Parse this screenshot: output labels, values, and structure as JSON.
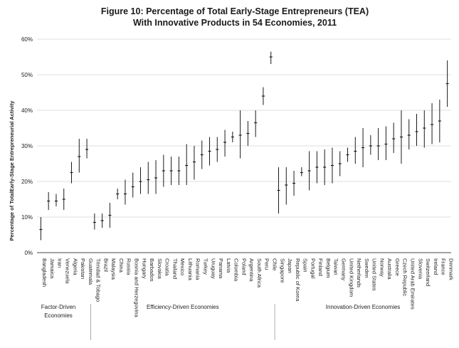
{
  "chart_data": {
    "type": "error-bar",
    "title_line1": "Figure 10: Percentage of Total Early-Stage Entrepreneurs (TEA)",
    "title_line2": "With Innovative Products in 54 Economies, 2011",
    "ylabel": "Percentage of TotalEarly-Stage  Entrepreneurial Activity",
    "ylim": [
      0,
      60
    ],
    "yticks": [
      "0%",
      "10%",
      "20%",
      "30%",
      "40%",
      "50%",
      "60%"
    ],
    "groups": [
      {
        "label_line1": "Factor-Driven",
        "label_line2": "Economies"
      },
      {
        "label_line1": "Efficiency-Driven Economies",
        "label_line2": ""
      },
      {
        "label_line1": "Innovation-Driven Economies",
        "label_line2": ""
      }
    ],
    "points": [
      {
        "name": "Bangladesh",
        "group": 0,
        "value": 6.5,
        "low": 3.5,
        "high": 10
      },
      {
        "name": "Jamaica",
        "group": 0,
        "value": 14.5,
        "low": 12,
        "high": 17
      },
      {
        "name": "Iran",
        "group": 0,
        "value": 14.5,
        "low": 13,
        "high": 16.5
      },
      {
        "name": "Venezuela",
        "group": 0,
        "value": 15,
        "low": 12,
        "high": 18
      },
      {
        "name": "Algeria",
        "group": 0,
        "value": 22.5,
        "low": 19.5,
        "high": 25.5
      },
      {
        "name": "Pakistan",
        "group": 0,
        "value": 27,
        "low": 22.5,
        "high": 32
      },
      {
        "name": "Guatemala",
        "group": 0,
        "value": 29,
        "low": 26.5,
        "high": 32
      },
      {
        "name": "Trinidad & Tobago",
        "group": 1,
        "value": 8.5,
        "low": 6.5,
        "high": 11
      },
      {
        "name": "Brazil",
        "group": 1,
        "value": 9,
        "low": 7,
        "high": 11
      },
      {
        "name": "Malaysia",
        "group": 1,
        "value": 10.5,
        "low": 7,
        "high": 14
      },
      {
        "name": "China",
        "group": 1,
        "value": 16.5,
        "low": 15,
        "high": 18
      },
      {
        "name": "Russia",
        "group": 1,
        "value": 16.5,
        "low": 13.5,
        "high": 20.5
      },
      {
        "name": "Bosnia and Herzegovina",
        "group": 1,
        "value": 18.5,
        "low": 15.5,
        "high": 22.5
      },
      {
        "name": "Hungary",
        "group": 1,
        "value": 20,
        "low": 16.5,
        "high": 24
      },
      {
        "name": "Barbados",
        "group": 1,
        "value": 20.5,
        "low": 16.5,
        "high": 25.5
      },
      {
        "name": "Slovakia",
        "group": 1,
        "value": 21,
        "low": 16.5,
        "high": 26
      },
      {
        "name": "Croatia",
        "group": 1,
        "value": 23,
        "low": 18.5,
        "high": 27.5
      },
      {
        "name": "Thailand",
        "group": 1,
        "value": 23,
        "low": 19,
        "high": 27
      },
      {
        "name": "Mexico",
        "group": 1,
        "value": 23,
        "low": 19,
        "high": 27
      },
      {
        "name": "Lithuania",
        "group": 1,
        "value": 24.5,
        "low": 19,
        "high": 30.5
      },
      {
        "name": "Romania",
        "group": 1,
        "value": 25.5,
        "low": 20.5,
        "high": 30
      },
      {
        "name": "Turkey",
        "group": 1,
        "value": 27.5,
        "low": 23.5,
        "high": 31.5
      },
      {
        "name": "Uruguay",
        "group": 1,
        "value": 28.5,
        "low": 24.5,
        "high": 32.5
      },
      {
        "name": "Panama",
        "group": 1,
        "value": 29,
        "low": 25.5,
        "high": 32.5
      },
      {
        "name": "Latvia",
        "group": 1,
        "value": 31,
        "low": 27,
        "high": 34.5
      },
      {
        "name": "Colombia",
        "group": 1,
        "value": 32.5,
        "low": 31,
        "high": 34
      },
      {
        "name": "Poland",
        "group": 1,
        "value": 33,
        "low": 26.5,
        "high": 40
      },
      {
        "name": "Argentina",
        "group": 1,
        "value": 33.5,
        "low": 30,
        "high": 37
      },
      {
        "name": "South Africa",
        "group": 1,
        "value": 36.5,
        "low": 32.5,
        "high": 40
      },
      {
        "name": "Peru",
        "group": 1,
        "value": 44,
        "low": 41.5,
        "high": 46.5
      },
      {
        "name": "Chile",
        "group": 1,
        "value": 55,
        "low": 53,
        "high": 56.5
      },
      {
        "name": "Singapore",
        "group": 2,
        "value": 17.5,
        "low": 11,
        "high": 24
      },
      {
        "name": "Japan",
        "group": 2,
        "value": 19,
        "low": 13.5,
        "high": 24
      },
      {
        "name": "Republic of Korea",
        "group": 2,
        "value": 19.5,
        "low": 16,
        "high": 23
      },
      {
        "name": "Spain",
        "group": 2,
        "value": 22.5,
        "low": 21.5,
        "high": 24
      },
      {
        "name": "Portugal",
        "group": 2,
        "value": 23,
        "low": 17.5,
        "high": 28.5
      },
      {
        "name": "Finland",
        "group": 2,
        "value": 24,
        "low": 19.5,
        "high": 28.5
      },
      {
        "name": "Belgium",
        "group": 2,
        "value": 24,
        "low": 19,
        "high": 29
      },
      {
        "name": "Taiwan",
        "group": 2,
        "value": 24.5,
        "low": 19.5,
        "high": 29.5
      },
      {
        "name": "Germany",
        "group": 2,
        "value": 25,
        "low": 21.5,
        "high": 28.5
      },
      {
        "name": "United Kingdom",
        "group": 2,
        "value": 27.5,
        "low": 25.5,
        "high": 29.5
      },
      {
        "name": "Netherlands",
        "group": 2,
        "value": 28.5,
        "low": 25,
        "high": 32.5
      },
      {
        "name": "Sweden",
        "group": 2,
        "value": 29.5,
        "low": 24,
        "high": 35
      },
      {
        "name": "United States",
        "group": 2,
        "value": 30,
        "low": 27.5,
        "high": 33
      },
      {
        "name": "Norway",
        "group": 2,
        "value": 30,
        "low": 26,
        "high": 35
      },
      {
        "name": "Australia",
        "group": 2,
        "value": 30.5,
        "low": 26,
        "high": 35.5
      },
      {
        "name": "Greece",
        "group": 2,
        "value": 32,
        "low": 28,
        "high": 36.5
      },
      {
        "name": "Czech Republic",
        "group": 2,
        "value": 32.5,
        "low": 25,
        "high": 40
      },
      {
        "name": "United Arab Emirates",
        "group": 2,
        "value": 33,
        "low": 29,
        "high": 37.5
      },
      {
        "name": "Slovenia",
        "group": 2,
        "value": 34,
        "low": 30,
        "high": 39
      },
      {
        "name": "Switzerland",
        "group": 2,
        "value": 35,
        "low": 29.5,
        "high": 40
      },
      {
        "name": "Ireland",
        "group": 2,
        "value": 36,
        "low": 30.5,
        "high": 42
      },
      {
        "name": "France",
        "group": 2,
        "value": 37,
        "low": 31,
        "high": 43
      },
      {
        "name": "Denmark",
        "group": 2,
        "value": 47.5,
        "low": 41,
        "high": 54
      }
    ]
  }
}
